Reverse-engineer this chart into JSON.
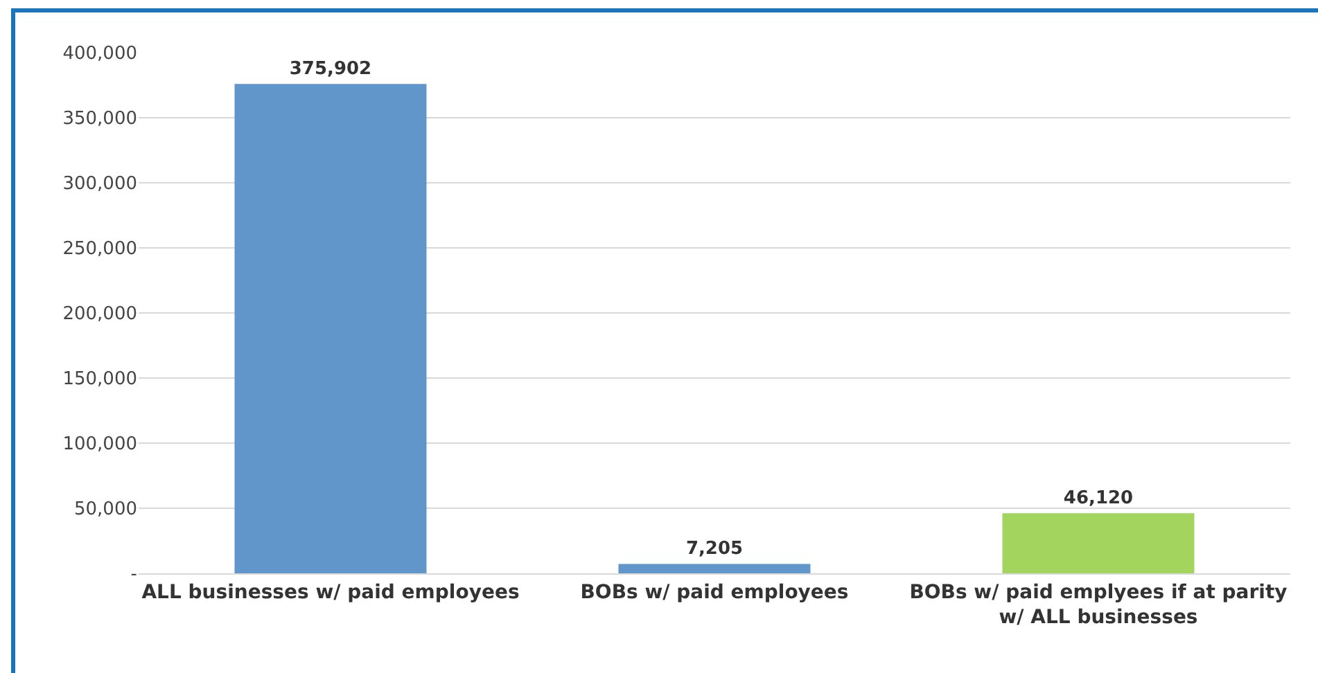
{
  "chart_data": {
    "type": "bar",
    "categories": [
      "ALL businesses w/ paid employees",
      "BOBs w/ paid employees",
      "BOBs w/ paid emplyees if at parity w/ ALL businesses"
    ],
    "values": [
      375902,
      7205,
      46120
    ],
    "colors": [
      "#6096c9",
      "#6096c9",
      "#a2d45e"
    ],
    "ylim": [
      0,
      400000
    ],
    "yticks": [
      {
        "value": 0,
        "label": "-"
      },
      {
        "value": 50000,
        "label": "50,000"
      },
      {
        "value": 100000,
        "label": "100,000"
      },
      {
        "value": 150000,
        "label": "150,000"
      },
      {
        "value": 200000,
        "label": "200,000"
      },
      {
        "value": 250000,
        "label": "250,000"
      },
      {
        "value": 300000,
        "label": "300,000"
      },
      {
        "value": 350000,
        "label": "350,000"
      },
      {
        "value": 400000,
        "label": "400,000"
      }
    ],
    "value_labels": [
      "375,902",
      "7,205",
      "46,120"
    ],
    "grid": "y"
  }
}
